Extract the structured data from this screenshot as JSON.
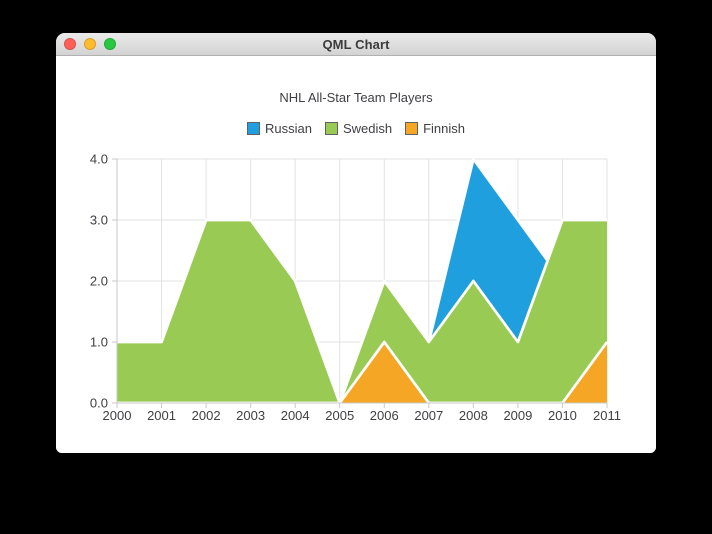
{
  "window": {
    "title": "QML Chart",
    "controls": [
      {
        "name": "close",
        "color": "#ff5f57"
      },
      {
        "name": "minimize",
        "color": "#febc2e"
      },
      {
        "name": "zoom",
        "color": "#28c840"
      }
    ]
  },
  "chart_data": {
    "type": "area",
    "title": "NHL All-Star Team Players",
    "legend_position": "top",
    "grid": true,
    "x": [
      2000,
      2001,
      2002,
      2003,
      2004,
      2005,
      2006,
      2007,
      2008,
      2009,
      2010,
      2011
    ],
    "xlim": [
      2000,
      2011
    ],
    "ylim": [
      0,
      4
    ],
    "xtick_labels": [
      "2000",
      "2001",
      "2002",
      "2003",
      "2004",
      "2005",
      "2006",
      "2007",
      "2008",
      "2009",
      "2010",
      "2011"
    ],
    "ytick_values": [
      0,
      1,
      2,
      3,
      4
    ],
    "ytick_labels": [
      "0.0",
      "1.0",
      "2.0",
      "3.0",
      "4.0"
    ],
    "series": [
      {
        "name": "Russian",
        "color": "#209fdf",
        "values": [
          1,
          1,
          1,
          1,
          1,
          0,
          1,
          1,
          4,
          3,
          2,
          1
        ]
      },
      {
        "name": "Swedish",
        "color": "#99ca53",
        "values": [
          1,
          1,
          3,
          3,
          2,
          0,
          2,
          1,
          2,
          1,
          3,
          3
        ]
      },
      {
        "name": "Finnish",
        "color": "#f6a625",
        "values": [
          0,
          0,
          0,
          0,
          0,
          0,
          1,
          0,
          0,
          0,
          0,
          1
        ]
      }
    ],
    "area_border_color": "#ffffff",
    "grid_color": "#e2e2e2",
    "axis_line_color": "#c9c9c9",
    "label_color": "#404044"
  }
}
